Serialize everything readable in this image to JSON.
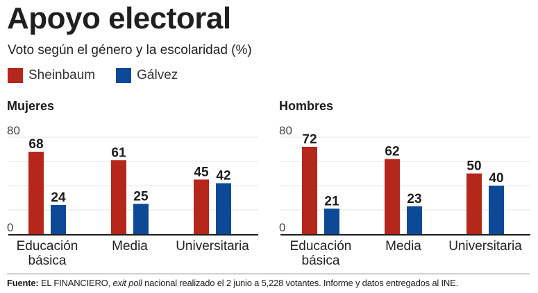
{
  "title": "Apoyo electoral",
  "subtitle": "Voto según el género y la escolaridad (%)",
  "legend": [
    {
      "label": "Sheinbaum",
      "color": "#b5261b"
    },
    {
      "label": "Gálvez",
      "color": "#0c4a97"
    }
  ],
  "footer": {
    "label": "Fuente:",
    "text_before": " EL FINANCIERO, ",
    "text_italic": "exit poll",
    "text_after": " nacional realizado el 2 junio a 5,228 votantes. Informe y datos entregados al INE."
  },
  "chart_data": [
    {
      "type": "bar",
      "title": "Mujeres",
      "categories": [
        "Educación básica",
        "Media",
        "Universitaria"
      ],
      "series": [
        {
          "name": "Sheinbaum",
          "color": "#b5261b",
          "values": [
            68,
            61,
            45
          ]
        },
        {
          "name": "Gálvez",
          "color": "#0c4a97",
          "values": [
            24,
            25,
            42
          ]
        }
      ],
      "ylim": [
        0,
        80
      ],
      "yticks_labeled": [
        "0",
        "80"
      ],
      "gridlines": [
        20,
        40,
        60,
        80
      ],
      "xlabel": "",
      "ylabel": ""
    },
    {
      "type": "bar",
      "title": "Hombres",
      "categories": [
        "Educación básica",
        "Media",
        "Universitaria"
      ],
      "series": [
        {
          "name": "Sheinbaum",
          "color": "#b5261b",
          "values": [
            72,
            62,
            50
          ]
        },
        {
          "name": "Gálvez",
          "color": "#0c4a97",
          "values": [
            21,
            23,
            40
          ]
        }
      ],
      "ylim": [
        0,
        80
      ],
      "yticks_labeled": [
        "0",
        "80"
      ],
      "gridlines": [
        20,
        40,
        60,
        80
      ],
      "xlabel": "",
      "ylabel": ""
    }
  ]
}
